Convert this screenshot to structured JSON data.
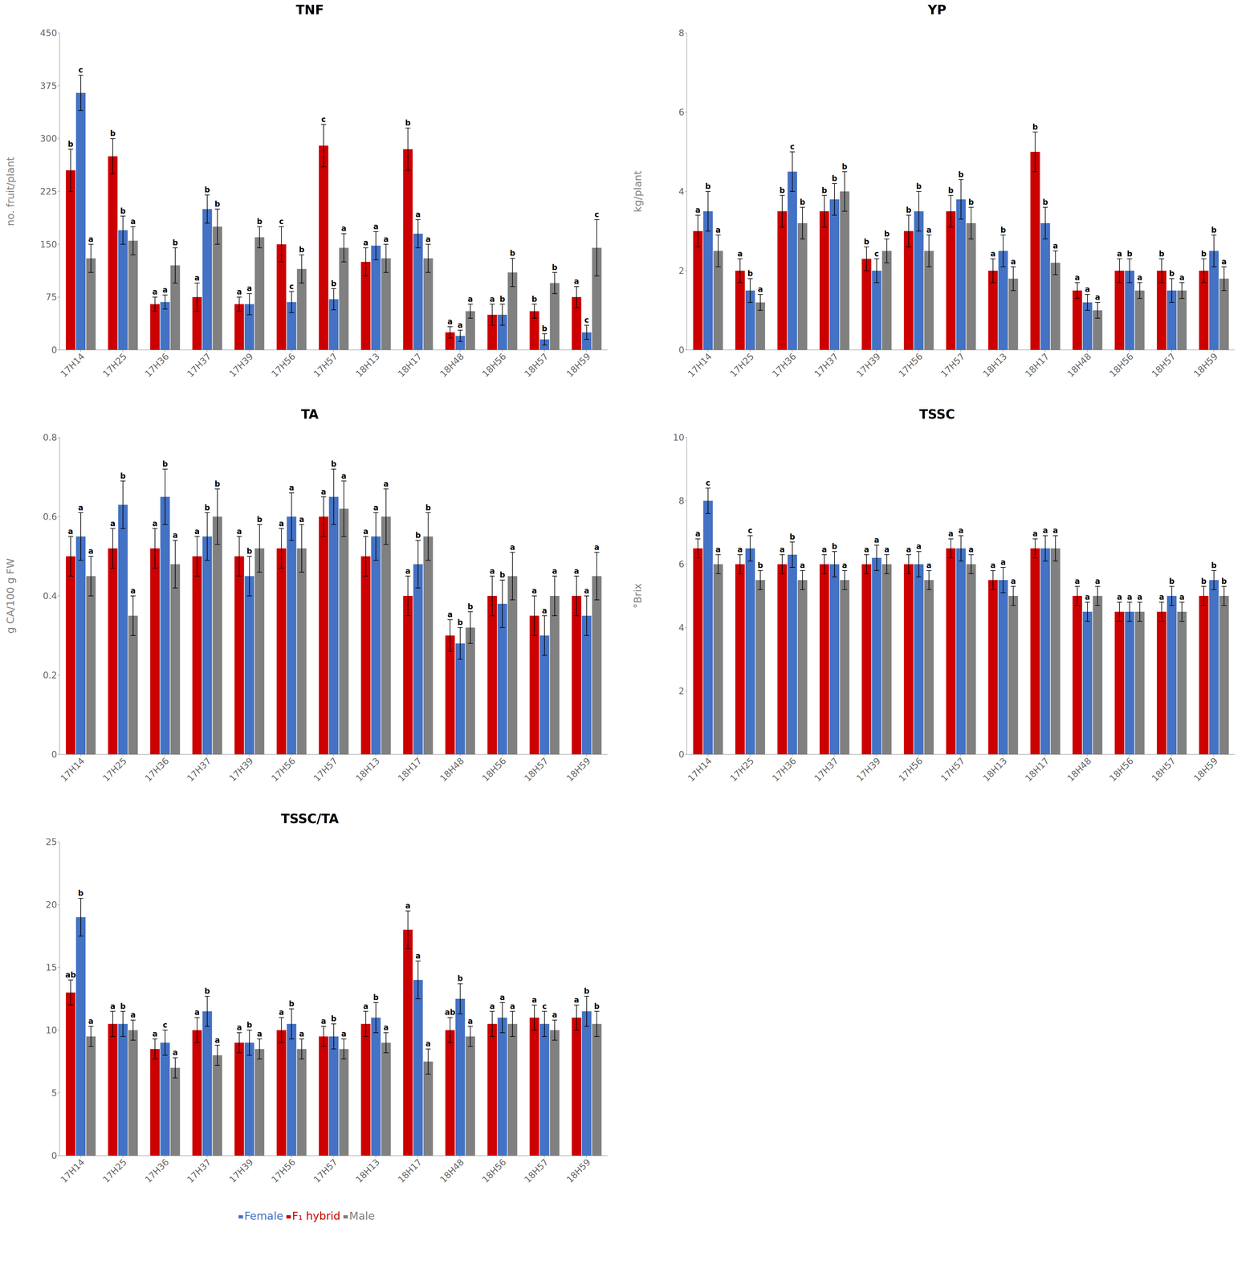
{
  "chart_data": [
    {
      "type": "bar",
      "title": "TNF",
      "ylabel": "no. fruit/plant",
      "categories": [
        "17H14",
        "17H25",
        "17H36",
        "17H37",
        "17H39",
        "17H56",
        "17H57",
        "18H13",
        "18H17",
        "18H48",
        "18H56",
        "18H57",
        "18H59"
      ],
      "ylim": [
        0,
        450
      ],
      "yticks": [
        0,
        75,
        150,
        225,
        300,
        375,
        450
      ],
      "grid": false,
      "series": [
        {
          "name": "F₁ hybrid",
          "color": "#CC0000",
          "values": [
            255,
            275,
            65,
            75,
            65,
            150,
            290,
            125,
            285,
            25,
            50,
            55,
            75
          ],
          "errors": [
            30,
            25,
            10,
            20,
            10,
            25,
            30,
            20,
            30,
            8,
            15,
            10,
            15
          ],
          "annotations": [
            "b",
            "b",
            "a",
            "a",
            "a",
            "c",
            "c",
            "a",
            "b",
            "a",
            "a",
            "b",
            "a"
          ]
        },
        {
          "name": "Female",
          "color": "#4472C4",
          "values": [
            365,
            170,
            68,
            200,
            65,
            68,
            72,
            148,
            165,
            20,
            50,
            15,
            25
          ],
          "errors": [
            25,
            20,
            10,
            20,
            15,
            15,
            15,
            20,
            20,
            8,
            15,
            8,
            10
          ],
          "annotations": [
            "c",
            "b",
            "a",
            "b",
            "a",
            "c",
            "b",
            "a",
            "a",
            "a",
            "b",
            "b",
            "c"
          ]
        },
        {
          "name": "Male",
          "color": "#808080",
          "values": [
            130,
            155,
            120,
            175,
            160,
            115,
            145,
            130,
            130,
            55,
            110,
            95,
            145
          ],
          "errors": [
            20,
            20,
            25,
            25,
            15,
            20,
            20,
            20,
            20,
            10,
            20,
            15,
            40
          ],
          "annotations": [
            "a",
            "a",
            "b",
            "b",
            "b",
            "b",
            "a",
            "a",
            "a",
            "a",
            "b",
            "b",
            "c"
          ]
        }
      ]
    },
    {
      "type": "bar",
      "title": "YP",
      "ylabel": "kg/plant",
      "categories": [
        "17H14",
        "17H25",
        "17H36",
        "17H37",
        "17H39",
        "17H56",
        "17H57",
        "18H13",
        "18H17",
        "18H48",
        "18H56",
        "18H57",
        "18H59"
      ],
      "ylim": [
        0,
        8
      ],
      "yticks": [
        0,
        2,
        4,
        6,
        8
      ],
      "grid": false,
      "series": [
        {
          "name": "F₁ hybrid",
          "color": "#CC0000",
          "values": [
            3.0,
            2.0,
            3.5,
            3.5,
            2.3,
            3.0,
            3.5,
            2.0,
            5.0,
            1.5,
            2.0,
            2.0,
            2.0
          ],
          "errors": [
            0.4,
            0.3,
            0.4,
            0.4,
            0.3,
            0.4,
            0.4,
            0.3,
            0.5,
            0.2,
            0.3,
            0.3,
            0.3
          ],
          "annotations": [
            "a",
            "a",
            "b",
            "b",
            "b",
            "b",
            "b",
            "a",
            "b",
            "a",
            "a",
            "b",
            "b"
          ]
        },
        {
          "name": "Female",
          "color": "#4472C4",
          "values": [
            3.5,
            1.5,
            4.5,
            3.8,
            2.0,
            3.5,
            3.8,
            2.5,
            3.2,
            1.2,
            2.0,
            1.5,
            2.5
          ],
          "errors": [
            0.5,
            0.3,
            0.5,
            0.4,
            0.3,
            0.5,
            0.5,
            0.4,
            0.4,
            0.2,
            0.3,
            0.3,
            0.4
          ],
          "annotations": [
            "b",
            "b",
            "c",
            "b",
            "c",
            "b",
            "b",
            "b",
            "b",
            "a",
            "b",
            "b",
            "b"
          ]
        },
        {
          "name": "Male",
          "color": "#808080",
          "values": [
            2.5,
            1.2,
            3.2,
            4.0,
            2.5,
            2.5,
            3.2,
            1.8,
            2.2,
            1.0,
            1.5,
            1.5,
            1.8
          ],
          "errors": [
            0.4,
            0.2,
            0.4,
            0.5,
            0.3,
            0.4,
            0.4,
            0.3,
            0.3,
            0.2,
            0.2,
            0.2,
            0.3
          ],
          "annotations": [
            "a",
            "a",
            "b",
            "b",
            "b",
            "a",
            "b",
            "a",
            "a",
            "a",
            "a",
            "a",
            "a"
          ]
        }
      ]
    },
    {
      "type": "bar",
      "title": "TA",
      "ylabel": "g CA/100 g FW",
      "categories": [
        "17H14",
        "17H25",
        "17H36",
        "17H37",
        "17H39",
        "17H56",
        "17H57",
        "18H13",
        "18H17",
        "18H48",
        "18H56",
        "18H57",
        "18H59"
      ],
      "ylim": [
        0,
        0.8
      ],
      "yticks": [
        0,
        0.2,
        0.4,
        0.6,
        0.8
      ],
      "grid": false,
      "series": [
        {
          "name": "F₁ hybrid",
          "color": "#CC0000",
          "values": [
            0.5,
            0.52,
            0.52,
            0.5,
            0.5,
            0.52,
            0.6,
            0.5,
            0.4,
            0.3,
            0.4,
            0.35,
            0.4
          ],
          "errors": [
            0.05,
            0.05,
            0.05,
            0.05,
            0.05,
            0.05,
            0.05,
            0.05,
            0.05,
            0.04,
            0.05,
            0.05,
            0.05
          ],
          "annotations": [
            "a",
            "a",
            "a",
            "a",
            "a",
            "a",
            "a",
            "a",
            "a",
            "a",
            "a",
            "a",
            "a"
          ]
        },
        {
          "name": "Female",
          "color": "#4472C4",
          "values": [
            0.55,
            0.63,
            0.65,
            0.55,
            0.45,
            0.6,
            0.65,
            0.55,
            0.48,
            0.28,
            0.38,
            0.3,
            0.35
          ],
          "errors": [
            0.06,
            0.06,
            0.07,
            0.06,
            0.05,
            0.06,
            0.07,
            0.06,
            0.06,
            0.04,
            0.06,
            0.05,
            0.05
          ],
          "annotations": [
            "a",
            "b",
            "b",
            "b",
            "b",
            "a",
            "b",
            "a",
            "b",
            "b",
            "b",
            "a",
            "a"
          ]
        },
        {
          "name": "Male",
          "color": "#808080",
          "values": [
            0.45,
            0.35,
            0.48,
            0.6,
            0.52,
            0.52,
            0.62,
            0.6,
            0.55,
            0.32,
            0.45,
            0.4,
            0.45
          ],
          "errors": [
            0.05,
            0.05,
            0.06,
            0.07,
            0.06,
            0.06,
            0.07,
            0.07,
            0.06,
            0.04,
            0.06,
            0.05,
            0.06
          ],
          "annotations": [
            "a",
            "a",
            "a",
            "b",
            "b",
            "a",
            "a",
            "a",
            "b",
            "b",
            "a",
            "a",
            "a"
          ]
        }
      ]
    },
    {
      "type": "bar",
      "title": "TSSC",
      "ylabel": "°Brix",
      "categories": [
        "17H14",
        "17H25",
        "17H36",
        "17H37",
        "17H39",
        "17H56",
        "17H57",
        "18H13",
        "18H17",
        "18H48",
        "18H56",
        "18H57",
        "18H59"
      ],
      "ylim": [
        0,
        10
      ],
      "yticks": [
        0,
        2,
        4,
        6,
        8,
        10
      ],
      "grid": false,
      "series": [
        {
          "name": "F₁ hybrid",
          "color": "#CC0000",
          "values": [
            6.5,
            6.0,
            6.0,
            6.0,
            6.0,
            6.0,
            6.5,
            5.5,
            6.5,
            5.0,
            4.5,
            4.5,
            5.0
          ],
          "errors": [
            0.3,
            0.3,
            0.3,
            0.3,
            0.3,
            0.3,
            0.3,
            0.3,
            0.3,
            0.3,
            0.3,
            0.3,
            0.3
          ],
          "annotations": [
            "a",
            "a",
            "a",
            "a",
            "a",
            "a",
            "a",
            "a",
            "a",
            "a",
            "a",
            "a",
            "b"
          ]
        },
        {
          "name": "Female",
          "color": "#4472C4",
          "values": [
            8.0,
            6.5,
            6.3,
            6.0,
            6.2,
            6.0,
            6.5,
            5.5,
            6.5,
            4.5,
            4.5,
            5.0,
            5.5
          ],
          "errors": [
            0.4,
            0.4,
            0.4,
            0.4,
            0.4,
            0.4,
            0.4,
            0.4,
            0.4,
            0.3,
            0.3,
            0.3,
            0.3
          ],
          "annotations": [
            "c",
            "c",
            "b",
            "b",
            "a",
            "a",
            "a",
            "a",
            "a",
            "a",
            "a",
            "b",
            "b"
          ]
        },
        {
          "name": "Male",
          "color": "#808080",
          "values": [
            6.0,
            5.5,
            5.5,
            5.5,
            6.0,
            5.5,
            6.0,
            5.0,
            6.5,
            5.0,
            4.5,
            4.5,
            5.0
          ],
          "errors": [
            0.3,
            0.3,
            0.3,
            0.3,
            0.3,
            0.3,
            0.3,
            0.3,
            0.4,
            0.3,
            0.3,
            0.3,
            0.3
          ],
          "annotations": [
            "a",
            "b",
            "a",
            "a",
            "a",
            "a",
            "a",
            "a",
            "a",
            "a",
            "a",
            "a",
            "b"
          ]
        }
      ]
    },
    {
      "type": "bar",
      "title": "TSSC/TA",
      "categories": [
        "17H14",
        "17H25",
        "17H36",
        "17H37",
        "17H39",
        "17H56",
        "17H57",
        "18H13",
        "18H17",
        "18H48",
        "18H56",
        "18H57",
        "18H59"
      ],
      "ylim": [
        0,
        25
      ],
      "yticks": [
        0,
        5,
        10,
        15,
        20,
        25
      ],
      "grid": false,
      "legend": "bottom",
      "series": [
        {
          "name": "F₁ hybrid",
          "color": "#CC0000",
          "values": [
            13.0,
            10.5,
            8.5,
            10.0,
            9.0,
            10.0,
            9.5,
            10.5,
            18.0,
            10.0,
            10.5,
            11.0,
            11.0
          ],
          "errors": [
            1.0,
            1.0,
            0.8,
            1.0,
            0.8,
            1.0,
            0.8,
            1.0,
            1.5,
            1.0,
            1.0,
            1.0,
            1.0
          ],
          "annotations": [
            "ab",
            "a",
            "a",
            "a",
            "a",
            "a",
            "a",
            "a",
            "a",
            "ab",
            "a",
            "a",
            "a"
          ]
        },
        {
          "name": "Female",
          "color": "#4472C4",
          "values": [
            19.0,
            10.5,
            9.0,
            11.5,
            9.0,
            10.5,
            9.5,
            11.0,
            14.0,
            12.5,
            11.0,
            10.5,
            11.5
          ],
          "errors": [
            1.5,
            1.0,
            1.0,
            1.2,
            1.0,
            1.2,
            1.0,
            1.2,
            1.5,
            1.2,
            1.2,
            1.0,
            1.2
          ],
          "annotations": [
            "b",
            "b",
            "c",
            "b",
            "b",
            "b",
            "b",
            "b",
            "a",
            "b",
            "a",
            "c",
            "b"
          ]
        },
        {
          "name": "Male",
          "color": "#808080",
          "values": [
            9.5,
            10.0,
            7.0,
            8.0,
            8.5,
            8.5,
            8.5,
            9.0,
            7.5,
            9.5,
            10.5,
            10.0,
            10.5
          ],
          "errors": [
            0.8,
            0.8,
            0.8,
            0.8,
            0.8,
            0.8,
            0.8,
            0.8,
            1.0,
            0.8,
            1.0,
            0.8,
            1.0
          ],
          "annotations": [
            "a",
            "a",
            "a",
            "a",
            "a",
            "a",
            "a",
            "a",
            "a",
            "a",
            "a",
            "a",
            "b"
          ]
        }
      ]
    }
  ]
}
